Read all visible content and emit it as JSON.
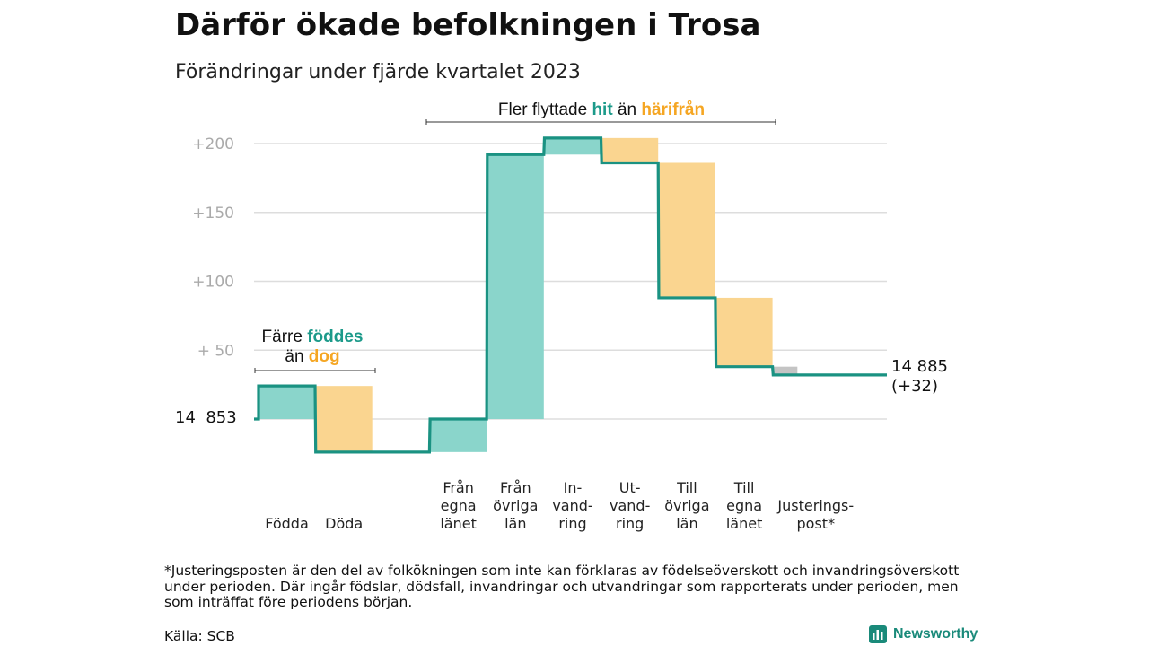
{
  "title": "Därför ökade befolkningen i Trosa",
  "subtitle": "Förändringar under fjärde kvartalet 2023",
  "annotations": {
    "top": {
      "pre": "Fler flyttade",
      "teal": "hit",
      "mid": "än",
      "orange": "härifrån"
    },
    "left_line1_pre": "Färre",
    "left_line1_teal": "föddes",
    "left_line2_pre": "än",
    "left_line2_orange": "dog"
  },
  "start_label": "14  853",
  "end_label": {
    "value": "14 885",
    "change": "(+32)"
  },
  "footnote": "*Justeringsposten är den del av folkökningen som inte kan förklaras av födelseöverskott och invandringsöverskott under perioden. Där ingår födslar, dödsfall, invandringar och utvandringar som rapporterats under perioden, men som inträffat före periodens början.",
  "source": "Källa: SCB",
  "brand": "Newsworthy",
  "colors": {
    "increase": "#8ad5cb",
    "decrease": "#fad590",
    "adjustment": "#c4c4c4",
    "line": "#1a9282",
    "grid": "#dddddd",
    "tick": "#aaaaaa"
  },
  "chart_data": {
    "type": "waterfall",
    "baseline": 14853,
    "total": 14885,
    "total_change": 32,
    "y_ticks": [
      {
        "value": 200,
        "label": "+200"
      },
      {
        "value": 150,
        "label": "+150"
      },
      {
        "value": 100,
        "label": "+100"
      },
      {
        "value": 50,
        "label": "+  50"
      }
    ],
    "ylim": [
      -25,
      205
    ],
    "categories": [
      {
        "lines": [
          "Födda"
        ],
        "value": 24,
        "kind": "increase"
      },
      {
        "lines": [
          "Döda"
        ],
        "value": -48,
        "kind": "decrease"
      },
      {
        "lines": [],
        "value": 0,
        "kind": "spacer"
      },
      {
        "lines": [
          "Från",
          "egna",
          "länet"
        ],
        "value": 24,
        "kind": "increase"
      },
      {
        "lines": [
          "Från",
          "övriga",
          "län"
        ],
        "value": 192,
        "kind": "increase"
      },
      {
        "lines": [
          "In-",
          "vand-",
          "ring"
        ],
        "value": 12,
        "kind": "increase"
      },
      {
        "lines": [
          "Ut-",
          "vand-",
          "ring"
        ],
        "value": -18,
        "kind": "decrease"
      },
      {
        "lines": [
          "Till",
          "övriga",
          "län"
        ],
        "value": -98,
        "kind": "decrease"
      },
      {
        "lines": [
          "Till",
          "egna",
          "länet"
        ],
        "value": -50,
        "kind": "decrease"
      },
      {
        "lines": [
          "Justerings-",
          "post*"
        ],
        "value": -6,
        "kind": "adjustment"
      }
    ]
  }
}
